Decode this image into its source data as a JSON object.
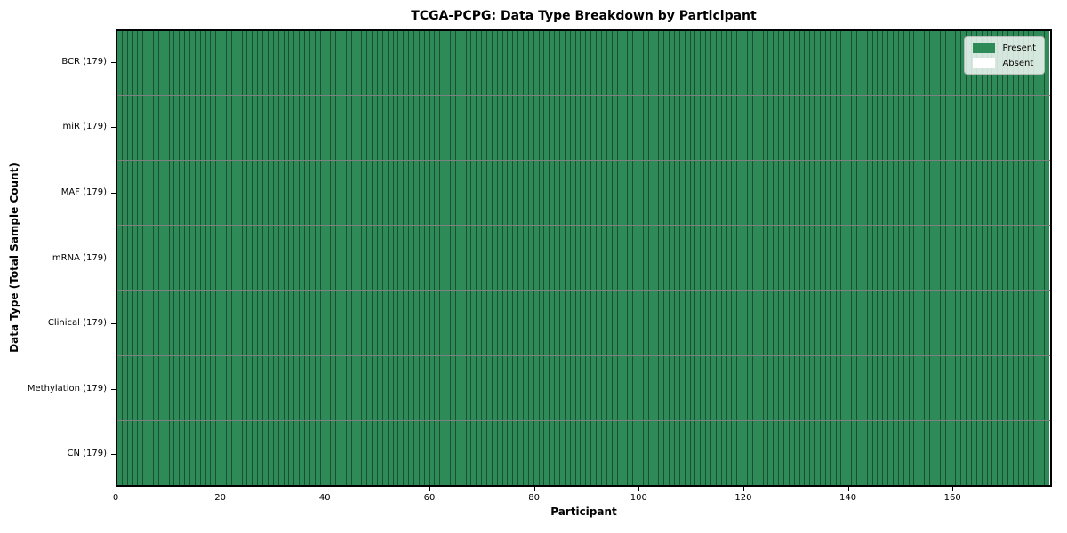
{
  "chart_data": {
    "type": "heatmap",
    "title": "TCGA-PCPG: Data Type Breakdown by Participant",
    "xlabel": "Participant",
    "ylabel": "Data Type (Total Sample Count)",
    "x_range": [
      0,
      179
    ],
    "x_ticks": [
      0,
      20,
      40,
      60,
      80,
      100,
      120,
      140,
      160
    ],
    "n_participants": 179,
    "rows": [
      {
        "label": "BCR (179)",
        "total": 179,
        "present_count": 179,
        "absent_count": 0
      },
      {
        "label": "miR (179)",
        "total": 179,
        "present_count": 179,
        "absent_count": 0
      },
      {
        "label": "MAF (179)",
        "total": 179,
        "present_count": 179,
        "absent_count": 0
      },
      {
        "label": "mRNA (179)",
        "total": 179,
        "present_count": 179,
        "absent_count": 0
      },
      {
        "label": "Clinical (179)",
        "total": 179,
        "present_count": 179,
        "absent_count": 0
      },
      {
        "label": "Methylation (179)",
        "total": 179,
        "present_count": 179,
        "absent_count": 0
      },
      {
        "label": "CN (179)",
        "total": 179,
        "present_count": 179,
        "absent_count": 0
      }
    ],
    "legend": {
      "position": "upper right",
      "entries": [
        {
          "label": "Present",
          "color": "#2e8b57"
        },
        {
          "label": "Absent",
          "color": "#ffffff"
        }
      ]
    },
    "colors": {
      "present": "#2e8b57",
      "absent": "#ffffff",
      "cell_edge": "rgba(0,0,0,0.42)",
      "spine": "#000000"
    },
    "grid": "cell-edges-on"
  }
}
